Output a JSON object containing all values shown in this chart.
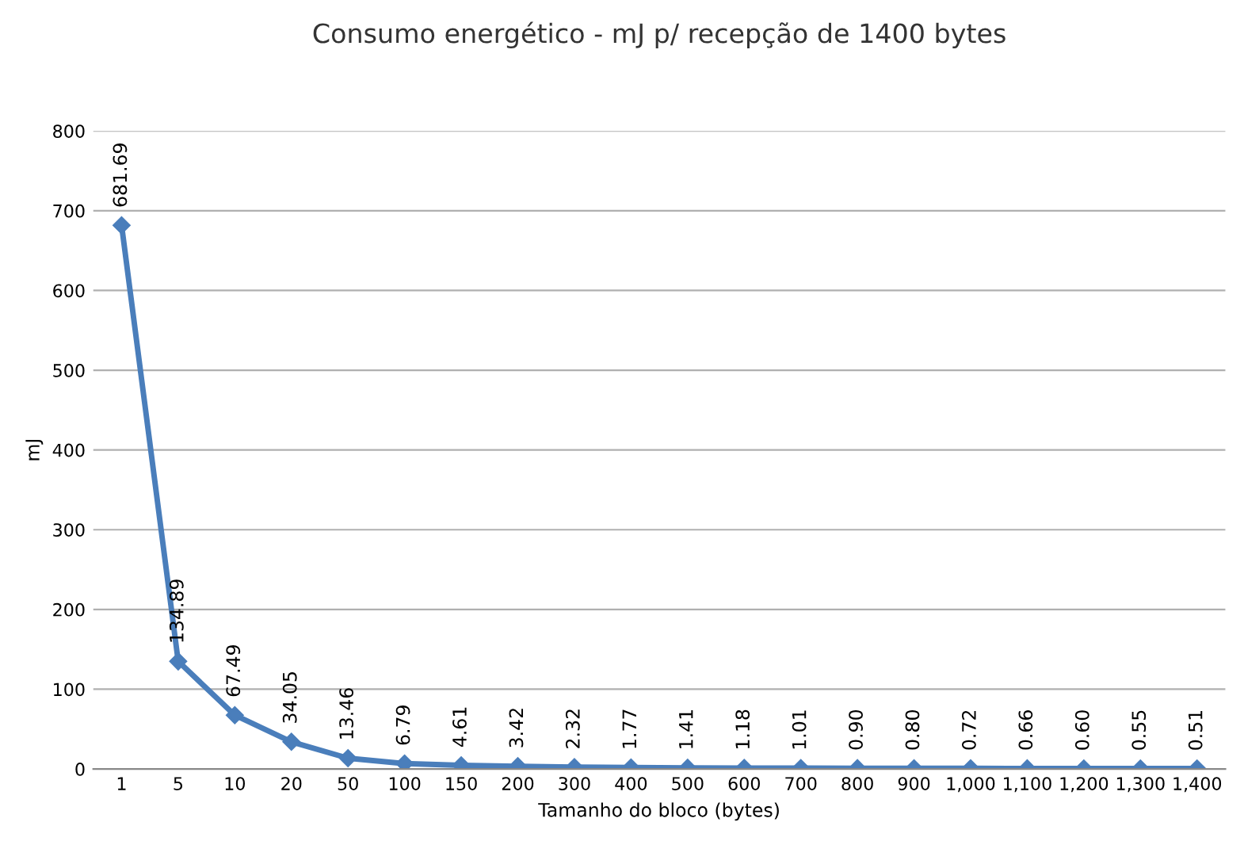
{
  "chart_data": {
    "type": "line",
    "title": "Consumo energético - mJ p/ recepção de 1400 bytes",
    "xlabel": "Tamanho do bloco (bytes)",
    "ylabel": "mJ",
    "categories": [
      "1",
      "5",
      "10",
      "20",
      "50",
      "100",
      "150",
      "200",
      "300",
      "400",
      "500",
      "600",
      "700",
      "800",
      "900",
      "1,000",
      "1,100",
      "1,200",
      "1,300",
      "1,400"
    ],
    "series": [
      {
        "color": "#4a7ebb",
        "values": [
          681.69,
          134.89,
          67.49,
          34.05,
          13.46,
          6.79,
          4.61,
          3.42,
          2.32,
          1.77,
          1.41,
          1.18,
          1.01,
          0.9,
          0.8,
          0.72,
          0.66,
          0.6,
          0.55,
          0.51
        ],
        "value_labels": [
          "681.69",
          "134.89",
          "67.49",
          "34.05",
          "13.46",
          "6.79",
          "4.61",
          "3.42",
          "2.32",
          "1.77",
          "1.41",
          "1.18",
          "1.01",
          "0.90",
          "0.80",
          "0.72",
          "0.66",
          "0.60",
          "0.55",
          "0.51"
        ]
      }
    ],
    "ylim": [
      0,
      800
    ],
    "yticks": [
      0,
      100,
      200,
      300,
      400,
      500,
      600,
      700,
      800
    ],
    "grid": "y",
    "marker": "diamond",
    "line_style": "solid",
    "legend": false
  }
}
